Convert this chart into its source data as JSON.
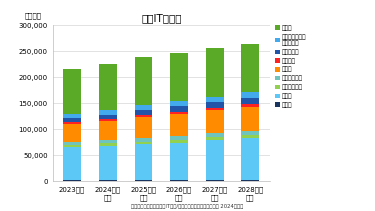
{
  "title": "国内IT投資額",
  "unit_label": "（億円）",
  "footnote": "富士キメラ総研「業種別IT投資/デジタルソリューション市場 2024年版」",
  "categories": [
    "2023年度",
    "2024年度\n見込",
    "2025年度\n予測",
    "2026年度\n予測",
    "2027年度\n予測",
    "2028年度\n予測"
  ],
  "labels": [
    "建設業",
    "製造業",
    "物流／運輸業",
    "小売／卸売業",
    "金融業",
    "不動産業",
    "サービス業",
    "文教／官公庁／\n地方自治体",
    "その他"
  ],
  "colors": [
    "#1a3560",
    "#5bc8f5",
    "#92d050",
    "#70c4be",
    "#ff8c00",
    "#ff2222",
    "#2255aa",
    "#44aaee",
    "#5aaa28"
  ],
  "stacked_data": [
    [
      2500,
      2600,
      2700,
      2800,
      2900,
      3000
    ],
    [
      64000,
      66000,
      69000,
      72000,
      76000,
      80000
    ],
    [
      4000,
      4500,
      5000,
      5500,
      6000,
      6500
    ],
    [
      5500,
      6000,
      6500,
      7000,
      7500,
      8000
    ],
    [
      35000,
      37000,
      40000,
      42000,
      44000,
      46000
    ],
    [
      3500,
      4000,
      4500,
      5000,
      4500,
      5500
    ],
    [
      7000,
      8000,
      9000,
      10000,
      11000,
      12000
    ],
    [
      9000,
      9500,
      10000,
      10500,
      11000,
      11500
    ],
    [
      85500,
      88400,
      93300,
      91200,
      93100,
      91947
    ]
  ],
  "totals": [
    216000,
    226000,
    240000,
    246000,
    256000,
    264447
  ],
  "ylim": [
    0,
    300000
  ],
  "yticks": [
    0,
    50000,
    100000,
    150000,
    200000,
    250000,
    300000
  ],
  "ytick_labels": [
    "0",
    "50,000",
    "100,000",
    "150,000",
    "200,000",
    "250,000",
    "300,000"
  ],
  "bar_width": 0.5
}
